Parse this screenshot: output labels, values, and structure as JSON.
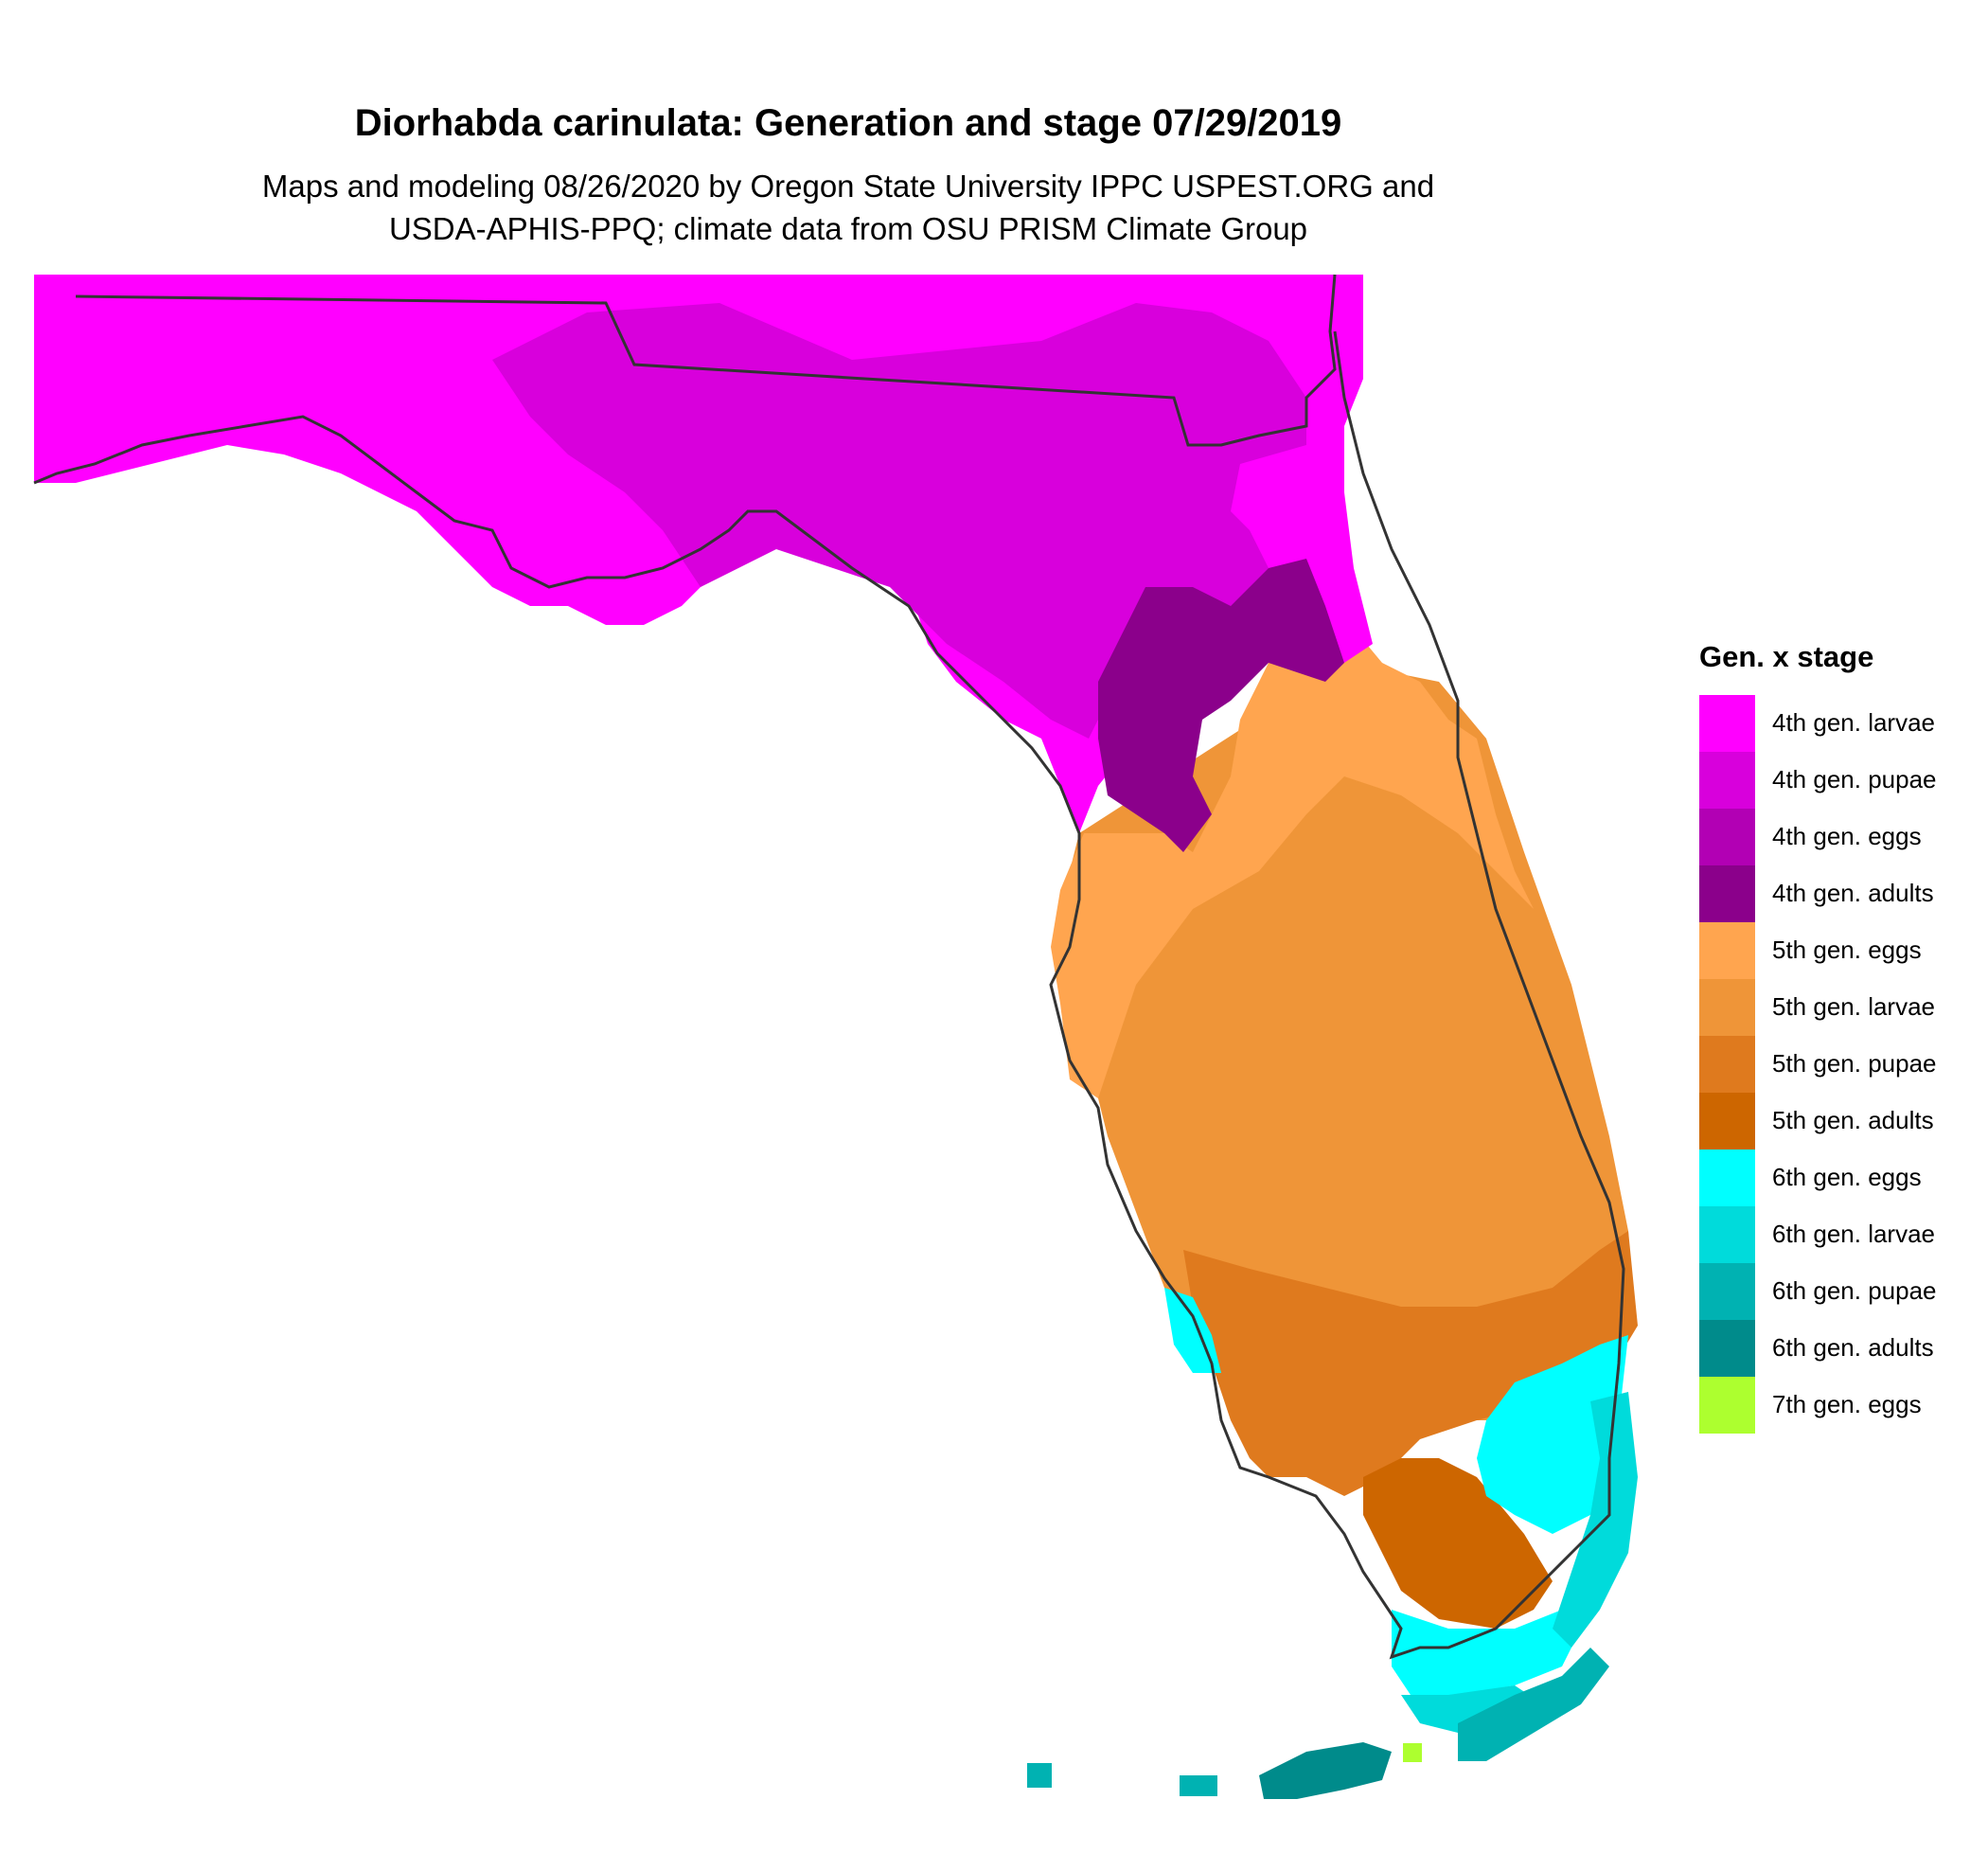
{
  "title": "Diorhabda carinulata: Generation and stage 07/29/2019",
  "subtitle_line1": "Maps and modeling 08/26/2020 by Oregon State University IPPC USPEST.ORG and",
  "subtitle_line2": "USDA-APHIS-PPQ; climate data from OSU PRISM Climate Group",
  "legend": {
    "title": "Gen. x stage",
    "items": [
      {
        "label": "4th gen. larvae",
        "color": "#ff00ff"
      },
      {
        "label": "4th gen. pupae",
        "color": "#d800dc"
      },
      {
        "label": "4th gen. eggs",
        "color": "#b200b4"
      },
      {
        "label": "4th gen. adults",
        "color": "#8b008b"
      },
      {
        "label": "5th gen. eggs",
        "color": "#ffa54f"
      },
      {
        "label": "5th gen. larvae",
        "color": "#ef9538"
      },
      {
        "label": "5th gen. pupae",
        "color": "#df7a1e"
      },
      {
        "label": "5th gen. adults",
        "color": "#cd6600"
      },
      {
        "label": "6th gen. eggs",
        "color": "#00ffff"
      },
      {
        "label": "6th gen. larvae",
        "color": "#00dbdb"
      },
      {
        "label": "6th gen. pupae",
        "color": "#00b2b2"
      },
      {
        "label": "6th gen. adults",
        "color": "#008b8b"
      },
      {
        "label": "7th gen. eggs",
        "color": "#adff2f"
      }
    ]
  }
}
